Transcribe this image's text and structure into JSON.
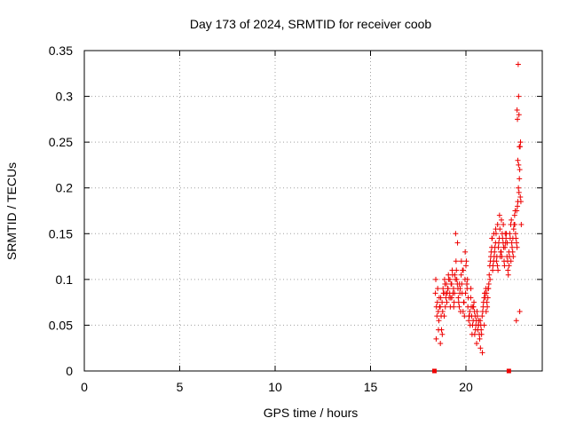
{
  "chart_data": {
    "type": "scatter",
    "title": "Day 173 of 2024, SRMTID for receiver coob",
    "xlabel": "GPS time / hours",
    "ylabel": "SRMTID / TECUs",
    "xlim": [
      0,
      24
    ],
    "ylim": [
      0,
      0.35
    ],
    "xticks": [
      0,
      5,
      10,
      15,
      20
    ],
    "xtick_labels": [
      "0",
      "5",
      "10",
      "15",
      "20"
    ],
    "yticks": [
      0,
      0.05,
      0.1,
      0.15,
      0.2,
      0.25,
      0.3,
      0.35
    ],
    "ytick_labels": [
      "0",
      "0.05",
      "0.1",
      "0.15",
      "0.2",
      "0.25",
      "0.3",
      "0.35"
    ],
    "grid": true,
    "marker": "plus",
    "series_color": "#ee0000",
    "zero_markers": [
      {
        "x": 18.35,
        "y": 0
      },
      {
        "x": 22.25,
        "y": 0
      }
    ],
    "series": [
      {
        "name": "SRMTID",
        "x": [
          18.4,
          18.45,
          18.5,
          18.55,
          18.6,
          18.65,
          18.7,
          18.75,
          18.8,
          18.85,
          18.9,
          18.95,
          19.0,
          19.05,
          19.1,
          19.15,
          19.2,
          19.25,
          19.3,
          19.35,
          19.4,
          19.45,
          19.5,
          19.55,
          19.6,
          19.65,
          19.7,
          19.75,
          19.8,
          19.85,
          19.9,
          19.95,
          20.0,
          20.05,
          20.1,
          20.15,
          20.2,
          20.25,
          20.3,
          20.35,
          20.4,
          20.45,
          20.5,
          20.55,
          20.6,
          20.65,
          20.7,
          20.75,
          20.8,
          20.85,
          20.9,
          20.95,
          21.0,
          21.05,
          21.1,
          21.15,
          21.2,
          21.25,
          21.3,
          21.35,
          21.4,
          21.45,
          21.5,
          21.55,
          21.6,
          21.65,
          21.7,
          21.75,
          21.8,
          21.85,
          21.9,
          21.95,
          22.0,
          22.05,
          22.1,
          22.15,
          22.2,
          22.25,
          22.3,
          22.35,
          22.4,
          22.45,
          22.5,
          22.55,
          22.6,
          22.65,
          22.7,
          22.75,
          22.8,
          22.85,
          22.9,
          18.42,
          18.48,
          18.52,
          18.58,
          18.62,
          18.68,
          18.72,
          18.78,
          18.82,
          18.88,
          18.92,
          18.98,
          19.02,
          19.08,
          19.12,
          19.18,
          19.22,
          19.28,
          19.32,
          19.38,
          19.42,
          19.48,
          19.52,
          19.58,
          19.62,
          19.68,
          19.72,
          19.78,
          19.82,
          19.88,
          19.92,
          19.98,
          20.02,
          20.08,
          20.12,
          20.18,
          20.22,
          20.28,
          20.32,
          20.38,
          20.42,
          20.48,
          20.52,
          20.58,
          20.62,
          20.68,
          20.72,
          20.78,
          20.82,
          20.88,
          20.92,
          20.98,
          21.02,
          21.08,
          21.12,
          21.18,
          21.22,
          21.28,
          21.32,
          21.38,
          21.42,
          21.48,
          21.52,
          21.58,
          21.62,
          21.68,
          21.72,
          21.78,
          21.82,
          21.88,
          21.92,
          21.98,
          22.02,
          22.08,
          22.12,
          22.18,
          22.22,
          22.28,
          22.32,
          22.38,
          22.42,
          22.48,
          22.52,
          22.58,
          22.62,
          22.68,
          22.72,
          22.78,
          22.82,
          22.88,
          18.44,
          18.56,
          18.66,
          18.76,
          18.86,
          18.96,
          19.06,
          19.16,
          19.26,
          19.36,
          19.46,
          19.56,
          19.66,
          19.76,
          19.86,
          19.96,
          20.06,
          20.16,
          20.26,
          20.36,
          20.46,
          20.56,
          20.66,
          20.76,
          20.86,
          20.96,
          21.06,
          21.16,
          21.26,
          21.36,
          21.46,
          21.56,
          21.66,
          21.76,
          21.86,
          21.96,
          22.06,
          22.16,
          22.26,
          22.36,
          22.46,
          22.56,
          22.66,
          22.76,
          22.86,
          22.74,
          22.76,
          22.78,
          22.7,
          22.8,
          22.68,
          22.72,
          22.84,
          22.82,
          22.64
        ],
        "y": [
          0.085,
          0.07,
          0.075,
          0.065,
          0.08,
          0.07,
          0.06,
          0.075,
          0.09,
          0.085,
          0.095,
          0.08,
          0.075,
          0.09,
          0.1,
          0.085,
          0.08,
          0.095,
          0.105,
          0.09,
          0.085,
          0.1,
          0.11,
          0.095,
          0.08,
          0.07,
          0.09,
          0.105,
          0.085,
          0.065,
          0.075,
          0.1,
          0.115,
          0.095,
          0.07,
          0.055,
          0.065,
          0.08,
          0.06,
          0.05,
          0.07,
          0.065,
          0.045,
          0.055,
          0.06,
          0.05,
          0.04,
          0.055,
          0.045,
          0.06,
          0.07,
          0.08,
          0.085,
          0.09,
          0.075,
          0.08,
          0.095,
          0.115,
          0.125,
          0.135,
          0.11,
          0.12,
          0.13,
          0.14,
          0.12,
          0.115,
          0.135,
          0.145,
          0.125,
          0.13,
          0.15,
          0.14,
          0.12,
          0.135,
          0.145,
          0.125,
          0.11,
          0.13,
          0.15,
          0.16,
          0.14,
          0.13,
          0.155,
          0.17,
          0.15,
          0.14,
          0.18,
          0.2,
          0.21,
          0.19,
          0.16,
          0.1,
          0.06,
          0.09,
          0.055,
          0.07,
          0.08,
          0.045,
          0.065,
          0.085,
          0.1,
          0.07,
          0.095,
          0.085,
          0.105,
          0.08,
          0.07,
          0.095,
          0.11,
          0.085,
          0.075,
          0.105,
          0.12,
          0.1,
          0.09,
          0.075,
          0.085,
          0.065,
          0.095,
          0.11,
          0.075,
          0.06,
          0.085,
          0.12,
          0.1,
          0.08,
          0.06,
          0.05,
          0.07,
          0.04,
          0.055,
          0.075,
          0.06,
          0.05,
          0.065,
          0.045,
          0.055,
          0.035,
          0.05,
          0.04,
          0.065,
          0.075,
          0.085,
          0.08,
          0.085,
          0.07,
          0.09,
          0.105,
          0.12,
          0.13,
          0.145,
          0.115,
          0.125,
          0.135,
          0.15,
          0.125,
          0.11,
          0.14,
          0.155,
          0.13,
          0.125,
          0.145,
          0.135,
          0.115,
          0.14,
          0.15,
          0.12,
          0.105,
          0.125,
          0.145,
          0.165,
          0.135,
          0.125,
          0.16,
          0.175,
          0.145,
          0.135,
          0.185,
          0.195,
          0.22,
          0.185,
          0.035,
          0.045,
          0.03,
          0.04,
          0.06,
          0.085,
          0.09,
          0.1,
          0.08,
          0.07,
          0.15,
          0.14,
          0.095,
          0.12,
          0.11,
          0.13,
          0.09,
          0.06,
          0.09,
          0.07,
          0.04,
          0.03,
          0.05,
          0.025,
          0.02,
          0.05,
          0.065,
          0.09,
          0.1,
          0.145,
          0.15,
          0.155,
          0.16,
          0.17,
          0.165,
          0.16,
          0.15,
          0.14,
          0.115,
          0.12,
          0.145,
          0.16,
          0.175,
          0.225,
          0.25,
          0.335,
          0.3,
          0.28,
          0.275,
          0.245,
          0.285,
          0.23,
          0.245,
          0.065,
          0.055
        ]
      }
    ]
  }
}
